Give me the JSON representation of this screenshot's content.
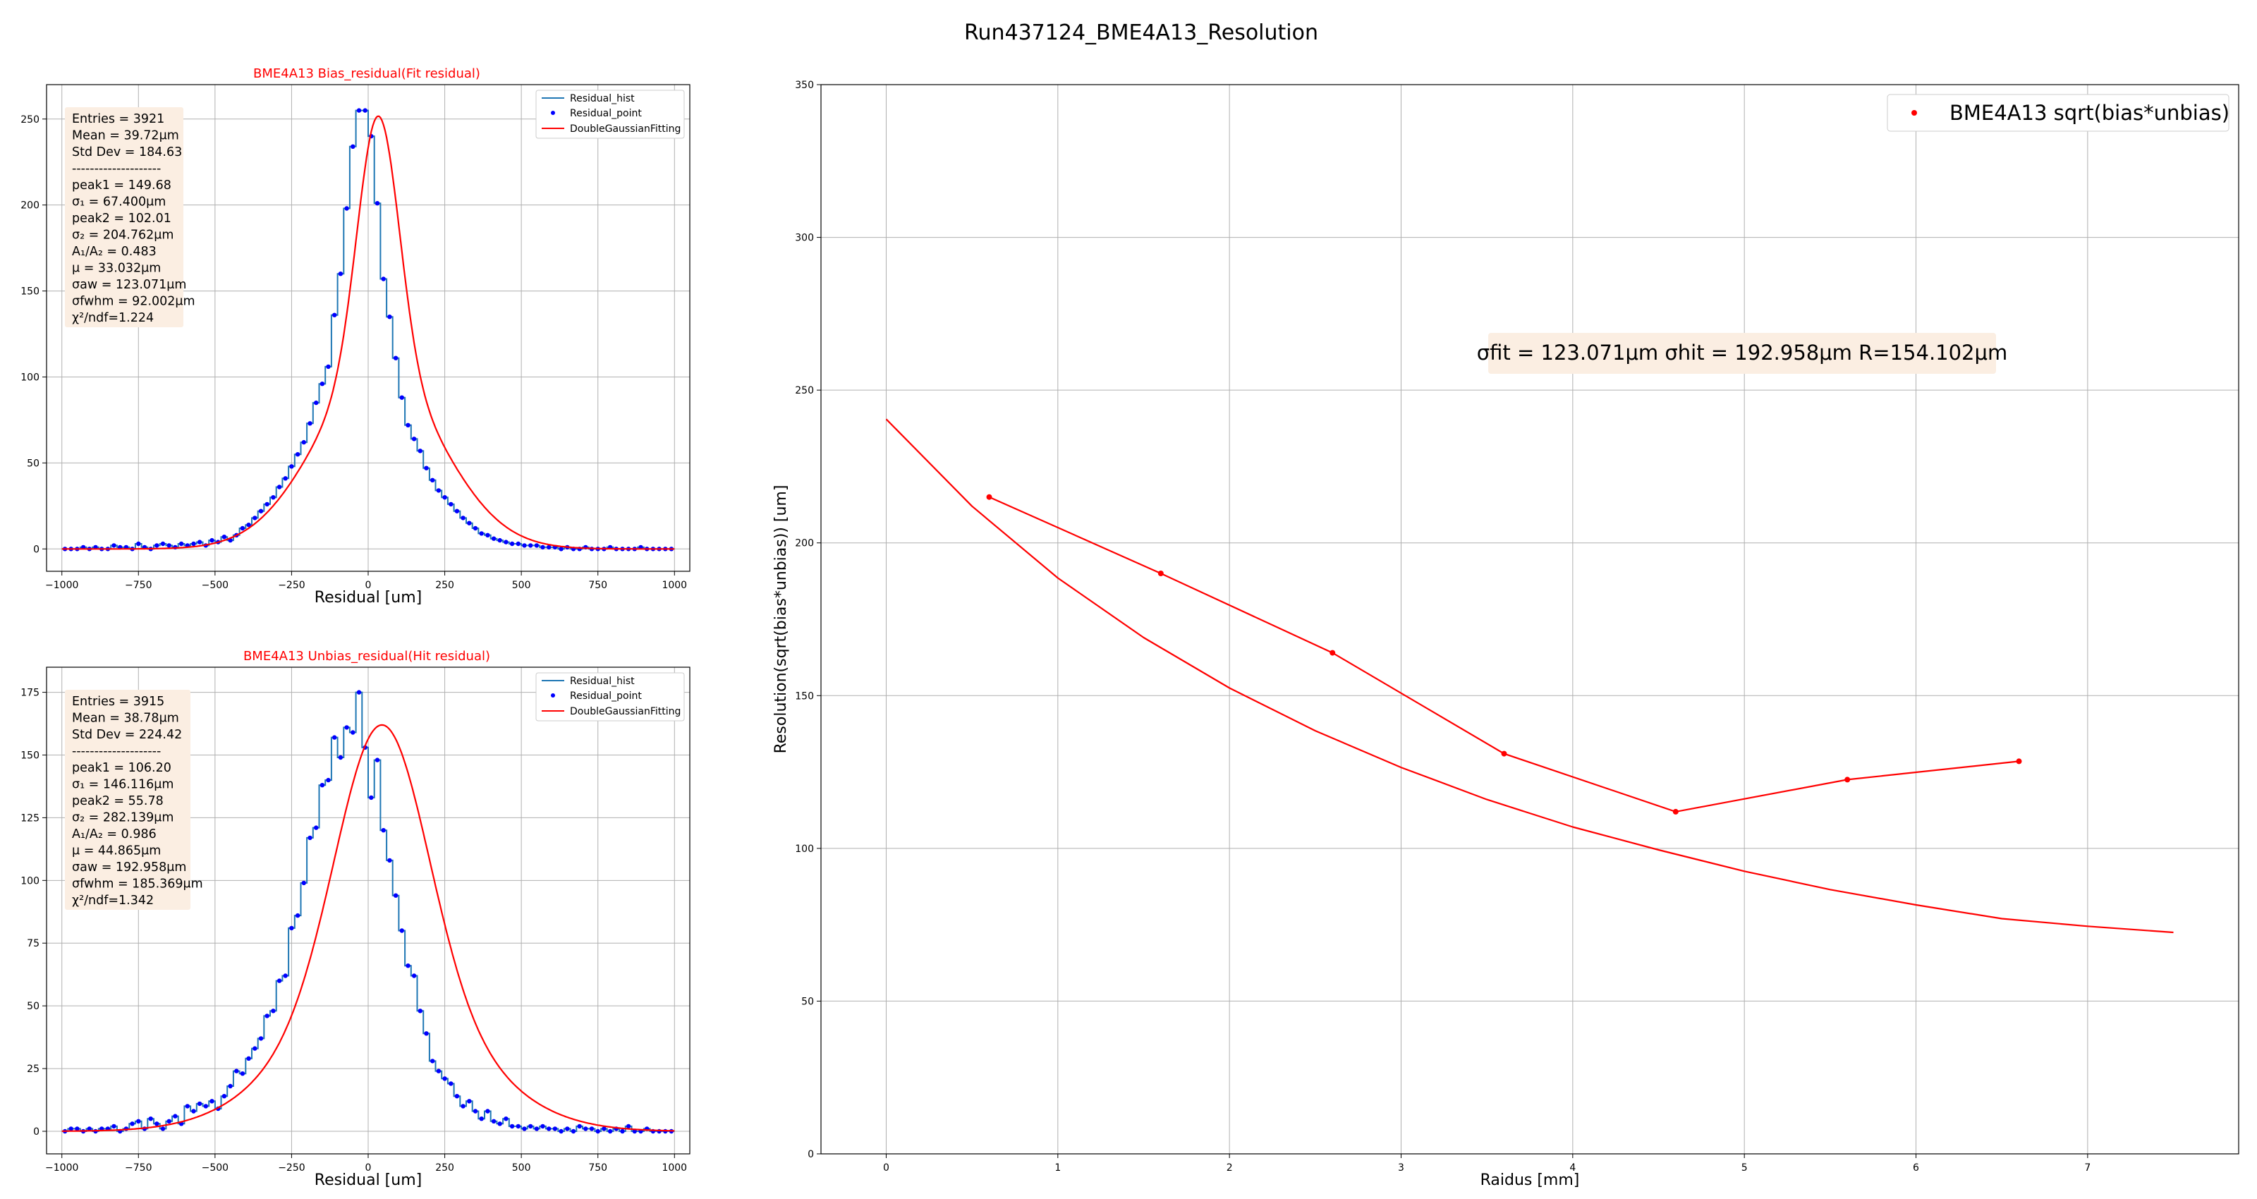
{
  "figure": {
    "title": "Run437124_BME4A13_Resolution"
  },
  "chart_data": [
    {
      "id": "bias",
      "type": "bar",
      "title": "BME4A13 Bias_residual(Fit residual)",
      "xlabel": "Residual [um]",
      "ylabel": "",
      "xlim": [
        -1050,
        1050
      ],
      "ylim": [
        -13,
        270
      ],
      "xticks": [
        -1000,
        -750,
        -500,
        -250,
        0,
        250,
        500,
        750,
        1000
      ],
      "xtick_labels": [
        "−1000",
        "−750",
        "−500",
        "−250",
        "0",
        "250",
        "500",
        "750",
        "1000"
      ],
      "yticks": [
        0,
        50,
        100,
        150,
        200,
        250
      ],
      "grid": true,
      "legend_position": "top-right",
      "legend": [
        "Residual_hist",
        "Residual_point",
        "DoubleGaussianFitting"
      ],
      "colors": {
        "hist": "#1f77b4",
        "point": "#0000ff",
        "fit": "#ff0000"
      },
      "stats": {
        "entries": "Entries = 3921",
        "mean": "Mean =  39.72μm",
        "std": "Std Dev = 184.63",
        "sep": "--------------------",
        "peak1": "peak1 = 149.68",
        "sigma1": "σ₁ = 67.400μm",
        "peak2": "peak2 = 102.01",
        "sigma2": "σ₂ = 204.762μm",
        "ratio": "A₁/A₂ = 0.483",
        "mu": "μ = 33.032μm",
        "sigma_aw": "σaw = 123.071μm",
        "sigma_fwhm": "σfwhm = 92.002μm",
        "chi2": "χ²/ndf=1.224"
      },
      "fit": {
        "peak1": 149.68,
        "sigma1": 67.4,
        "peak2": 102.01,
        "sigma2": 204.762,
        "mu": 33.032
      },
      "series": [
        {
          "name": "Residual_hist",
          "x": [
            -990,
            -970,
            -950,
            -930,
            -910,
            -890,
            -870,
            -850,
            -830,
            -810,
            -790,
            -770,
            -750,
            -730,
            -710,
            -690,
            -670,
            -650,
            -630,
            -610,
            -590,
            -570,
            -550,
            -530,
            -510,
            -490,
            -470,
            -450,
            -430,
            -410,
            -390,
            -370,
            -350,
            -330,
            -310,
            -290,
            -270,
            -250,
            -230,
            -210,
            -190,
            -170,
            -150,
            -130,
            -110,
            -90,
            -70,
            -50,
            -30,
            -10,
            10,
            30,
            50,
            70,
            90,
            110,
            130,
            150,
            170,
            190,
            210,
            230,
            250,
            270,
            290,
            310,
            330,
            350,
            370,
            390,
            410,
            430,
            450,
            470,
            490,
            510,
            530,
            550,
            570,
            590,
            610,
            630,
            650,
            670,
            690,
            710,
            730,
            750,
            770,
            790,
            810,
            830,
            850,
            870,
            890,
            910,
            930,
            950,
            970,
            990
          ],
          "values": [
            0,
            0,
            0,
            1,
            0,
            1,
            0,
            0,
            2,
            1,
            1,
            0,
            3,
            1,
            0,
            2,
            3,
            2,
            1,
            3,
            2,
            3,
            4,
            2,
            5,
            4,
            7,
            5,
            8,
            12,
            14,
            18,
            22,
            26,
            30,
            36,
            41,
            48,
            55,
            62,
            73,
            85,
            96,
            106,
            136,
            160,
            198,
            234,
            255,
            255,
            240,
            201,
            157,
            135,
            111,
            88,
            72,
            64,
            57,
            47,
            40,
            34,
            30,
            26,
            22,
            18,
            15,
            12,
            9,
            8,
            6,
            5,
            4,
            3,
            3,
            2,
            2,
            2,
            1,
            1,
            1,
            0,
            1,
            0,
            0,
            1,
            0,
            0,
            0,
            1,
            0,
            0,
            0,
            0,
            1,
            0,
            0,
            0,
            0,
            0
          ]
        }
      ]
    },
    {
      "id": "unbias",
      "type": "bar",
      "title": "BME4A13 Unbias_residual(Hit residual)",
      "xlabel": "Residual [um]",
      "ylabel": "",
      "xlim": [
        -1050,
        1050
      ],
      "ylim": [
        -9,
        185
      ],
      "xticks": [
        -1000,
        -750,
        -500,
        -250,
        0,
        250,
        500,
        750,
        1000
      ],
      "xtick_labels": [
        "−1000",
        "−750",
        "−500",
        "−250",
        "0",
        "250",
        "500",
        "750",
        "1000"
      ],
      "yticks": [
        0,
        25,
        50,
        75,
        100,
        125,
        150,
        175
      ],
      "grid": true,
      "legend_position": "top-right",
      "legend": [
        "Residual_hist",
        "Residual_point",
        "DoubleGaussianFitting"
      ],
      "colors": {
        "hist": "#1f77b4",
        "point": "#0000ff",
        "fit": "#ff0000"
      },
      "stats": {
        "entries": "Entries = 3915",
        "mean": "Mean =  38.78μm",
        "std": "Std Dev = 224.42",
        "sep": "--------------------",
        "peak1": "peak1 = 106.20",
        "sigma1": "σ₁ = 146.116μm",
        "peak2": "peak2 = 55.78",
        "sigma2": "σ₂ = 282.139μm",
        "ratio": "A₁/A₂ = 0.986",
        "mu": "μ = 44.865μm",
        "sigma_aw": "σaw = 192.958μm",
        "sigma_fwhm": "σfwhm = 185.369μm",
        "chi2": "χ²/ndf=1.342"
      },
      "fit": {
        "peak1": 106.2,
        "sigma1": 146.116,
        "peak2": 55.78,
        "sigma2": 282.139,
        "mu": 44.865
      },
      "series": [
        {
          "name": "Residual_hist",
          "x": [
            -990,
            -970,
            -950,
            -930,
            -910,
            -890,
            -870,
            -850,
            -830,
            -810,
            -790,
            -770,
            -750,
            -730,
            -710,
            -690,
            -670,
            -650,
            -630,
            -610,
            -590,
            -570,
            -550,
            -530,
            -510,
            -490,
            -470,
            -450,
            -430,
            -410,
            -390,
            -370,
            -350,
            -330,
            -310,
            -290,
            -270,
            -250,
            -230,
            -210,
            -190,
            -170,
            -150,
            -130,
            -110,
            -90,
            -70,
            -50,
            -30,
            -10,
            10,
            30,
            50,
            70,
            90,
            110,
            130,
            150,
            170,
            190,
            210,
            230,
            250,
            270,
            290,
            310,
            330,
            350,
            370,
            390,
            410,
            430,
            450,
            470,
            490,
            510,
            530,
            550,
            570,
            590,
            610,
            630,
            650,
            670,
            690,
            710,
            730,
            750,
            770,
            790,
            810,
            830,
            850,
            870,
            890,
            910,
            930,
            950,
            970,
            990
          ],
          "values": [
            0,
            1,
            1,
            0,
            1,
            0,
            1,
            1,
            2,
            0,
            1,
            3,
            4,
            1,
            5,
            3,
            1,
            4,
            6,
            3,
            10,
            8,
            11,
            10,
            12,
            9,
            14,
            18,
            24,
            23,
            29,
            33,
            37,
            46,
            48,
            60,
            62,
            81,
            86,
            99,
            117,
            121,
            138,
            140,
            157,
            149,
            161,
            159,
            175,
            153,
            133,
            148,
            120,
            108,
            94,
            80,
            66,
            62,
            48,
            39,
            28,
            24,
            21,
            19,
            14,
            10,
            12,
            8,
            5,
            8,
            4,
            3,
            5,
            2,
            2,
            1,
            2,
            1,
            2,
            1,
            1,
            0,
            1,
            0,
            2,
            1,
            1,
            0,
            1,
            0,
            1,
            0,
            2,
            0,
            0,
            1,
            0,
            0,
            0,
            0
          ]
        }
      ]
    },
    {
      "id": "resolution",
      "type": "line",
      "title": "",
      "xlabel": "Raidus [mm]",
      "ylabel": "Resolution(sqrt(bias*unbias)) [um]",
      "xlim": [
        -0.38,
        7.88
      ],
      "ylim": [
        0,
        350
      ],
      "xticks": [
        0,
        1,
        2,
        3,
        4,
        5,
        6,
        7
      ],
      "yticks": [
        0,
        50,
        100,
        150,
        200,
        250,
        300,
        350
      ],
      "grid": true,
      "legend_position": "top-right",
      "legend": [
        "BME4A13 sqrt(bias*unbias)"
      ],
      "annotation": "σfit = 123.071μm σhit = 192.958μm R=154.102μm",
      "colors": {
        "points": "#ff0000",
        "curve": "#ff0000",
        "annotation_bg": "#fbeee2"
      },
      "series": [
        {
          "name": "BME4A13 sqrt(bias*unbias)",
          "x": [
            0.6,
            1.6,
            2.6,
            3.6,
            4.6,
            5.6,
            6.6
          ],
          "values": [
            215,
            190,
            164,
            131,
            112,
            122.5,
            128.5
          ]
        },
        {
          "name": "",
          "x": [
            0,
            0.5,
            1,
            1.5,
            2,
            2.5,
            3,
            3.5,
            4,
            4.5,
            5,
            5.5,
            6,
            6.5,
            7,
            7.5
          ],
          "values": [
            240.5,
            212,
            188.5,
            169,
            152.5,
            138.5,
            126.5,
            116,
            107,
            99.5,
            92.5,
            86.5,
            81.5,
            77,
            74.5,
            72.5
          ]
        }
      ]
    }
  ]
}
